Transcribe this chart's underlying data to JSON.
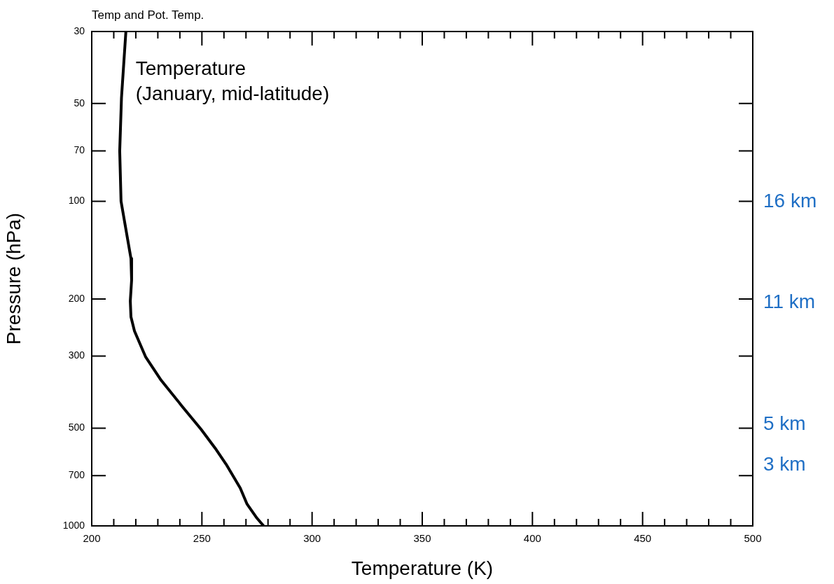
{
  "chart_data": {
    "type": "line",
    "title": "Temp and Pot. Temp.",
    "xlabel": "Temperature (K)",
    "ylabel": "Pressure (hPa)",
    "log": "y",
    "xlim": [
      200,
      500
    ],
    "ylim": [
      1000,
      30
    ],
    "xticks": [
      200,
      {
        "value": 210,
        "label": null
      },
      {
        "value": 220,
        "label": null
      },
      {
        "value": 230,
        "label": null
      },
      {
        "value": 240,
        "label": null
      },
      250,
      {
        "value": 260,
        "label": null
      },
      {
        "value": 270,
        "label": null
      },
      {
        "value": 280,
        "label": null
      },
      {
        "value": 290,
        "label": null
      },
      300,
      {
        "value": 310,
        "label": null
      },
      {
        "value": 320,
        "label": null
      },
      {
        "value": 330,
        "label": null
      },
      {
        "value": 340,
        "label": null
      },
      350,
      {
        "value": 360,
        "label": null
      },
      {
        "value": 370,
        "label": null
      },
      {
        "value": 380,
        "label": null
      },
      {
        "value": 390,
        "label": null
      },
      400,
      {
        "value": 410,
        "label": null
      },
      {
        "value": 420,
        "label": null
      },
      {
        "value": 430,
        "label": null
      },
      {
        "value": 440,
        "label": null
      },
      450,
      {
        "value": 460,
        "label": null
      },
      {
        "value": 470,
        "label": null
      },
      {
        "value": 480,
        "label": null
      },
      {
        "value": 490,
        "label": null
      },
      500
    ],
    "yticks": [
      30,
      50,
      70,
      100,
      200,
      300,
      500,
      700,
      1000
    ],
    "marker": "none",
    "line_style": "solid",
    "series": [
      {
        "name": "Temperature (January, mid-latitude)",
        "color": "#000000",
        "x": [
          215.5,
          213.5,
          212.7,
          213.3,
          217.8,
          218.1,
          217.5,
          217.8,
          219.4,
          224.5,
          231.5,
          241,
          249.6,
          256,
          261,
          267.4,
          270.5,
          275,
          278
        ],
        "values": [
          30,
          48,
          70,
          100,
          150,
          175,
          203,
          227,
          251,
          302,
          356,
          428,
          504,
          576,
          646,
          765,
          857,
          947,
          1000
        ]
      }
    ],
    "y2lim": [
      0,
      24.4
    ],
    "y2ticks": [
      {
        "value": 16,
        "label": "16 km"
      },
      {
        "value": 11,
        "label": "11 km"
      },
      {
        "value": 5,
        "label": "5 km"
      },
      {
        "value": 3,
        "label": "3 km"
      }
    ]
  }
}
